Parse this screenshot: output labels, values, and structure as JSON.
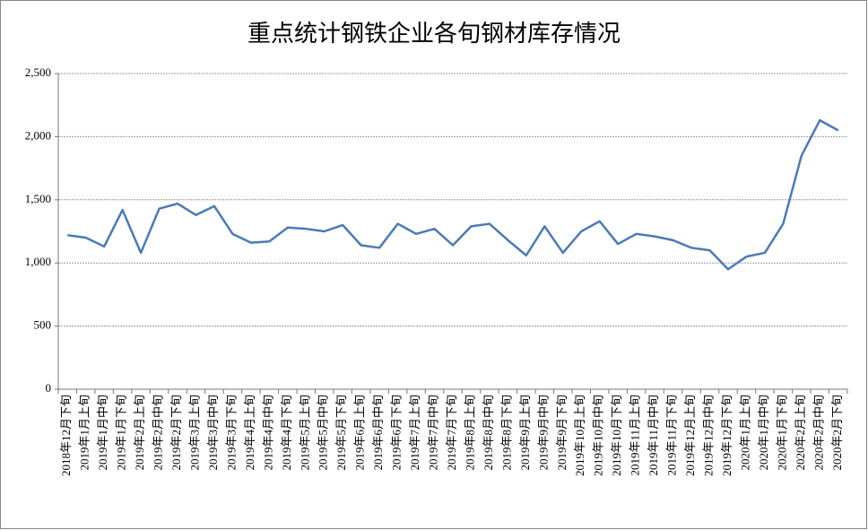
{
  "chart_data": {
    "type": "line",
    "title": "重点统计钢铁企业各旬钢材库存情况",
    "categories": [
      "2018年12月下旬",
      "2019年1月上旬",
      "2019年1月中旬",
      "2019年1月下旬",
      "2019年2月上旬",
      "2019年2月中旬",
      "2019年2月下旬",
      "2019年3月上旬",
      "2019年3月中旬",
      "2019年3月下旬",
      "2019年4月上旬",
      "2019年4月中旬",
      "2019年4月下旬",
      "2019年5月上旬",
      "2019年5月中旬",
      "2019年5月下旬",
      "2019年6月上旬",
      "2019年6月中旬",
      "2019年6月下旬",
      "2019年7月上旬",
      "2019年7月中旬",
      "2019年7月下旬",
      "2019年8月上旬",
      "2019年8月中旬",
      "2019年8月下旬",
      "2019年9月上旬",
      "2019年9月中旬",
      "2019年9月下旬",
      "2019年10月上旬",
      "2019年10月中旬",
      "2019年10月下旬",
      "2019年11月上旬",
      "2019年11月中旬",
      "2019年11月下旬",
      "2019年12月上旬",
      "2019年12月中旬",
      "2019年12月下旬",
      "2020年1月上旬",
      "2020年1月中旬",
      "2020年1月下旬",
      "2020年2月上旬",
      "2020年2月中旬",
      "2020年2月下旬"
    ],
    "series": [
      {
        "color": "#4a7ab8",
        "values": [
          1220,
          1200,
          1130,
          1420,
          1080,
          1430,
          1470,
          1380,
          1450,
          1230,
          1160,
          1170,
          1280,
          1270,
          1250,
          1300,
          1140,
          1120,
          1310,
          1230,
          1270,
          1140,
          1290,
          1310,
          1180,
          1060,
          1290,
          1080,
          1250,
          1330,
          1150,
          1230,
          1210,
          1180,
          1120,
          1100,
          950,
          1050,
          1080,
          1310,
          1850,
          2130,
          2050
        ]
      }
    ],
    "ylim": [
      0,
      2500
    ],
    "yticks": [
      0,
      500,
      {
        "value": 1000,
        "label": "1,000"
      },
      {
        "value": 1500,
        "label": "1,500"
      },
      {
        "value": 2000,
        "label": "2,000"
      },
      {
        "value": 2500,
        "label": "2,500"
      }
    ],
    "grid": true
  }
}
